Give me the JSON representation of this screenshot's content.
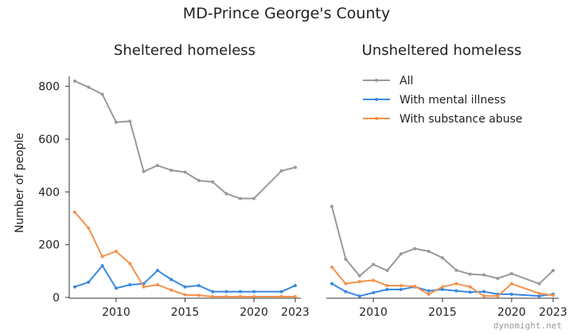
{
  "chart_data": {
    "type": "line",
    "title": "MD-Prince George's County",
    "ylabel": "Number of people",
    "ylim": [
      0,
      820
    ],
    "yticks": [
      0,
      200,
      400,
      600,
      800
    ],
    "xlim": [
      2007,
      2023
    ],
    "xticks": [
      2010,
      2015,
      2020,
      2023
    ],
    "grid": false,
    "legend": {
      "placement": "top-right of right panel"
    },
    "watermark": "dynomight.net",
    "series_styles": [
      {
        "name": "All",
        "color": "#999999"
      },
      {
        "name": "With mental illness",
        "color": "#3a88e0"
      },
      {
        "name": "With substance abuse",
        "color": "#f5924a"
      }
    ],
    "panels": [
      {
        "title": "Sheltered homeless",
        "series": [
          {
            "name": "All",
            "x": [
              2007,
              2008,
              2009,
              2010,
              2011,
              2012,
              2013,
              2014,
              2015,
              2016,
              2017,
              2018,
              2019,
              2020,
              2022,
              2023
            ],
            "values": [
              820,
              797,
              770,
              664,
              668,
              477,
              500,
              482,
              475,
              443,
              438,
              393,
              375,
              375,
              480,
              493
            ]
          },
          {
            "name": "With mental illness",
            "x": [
              2007,
              2008,
              2009,
              2010,
              2011,
              2012,
              2013,
              2014,
              2015,
              2016,
              2017,
              2018,
              2019,
              2020,
              2022,
              2023
            ],
            "values": [
              40,
              58,
              120,
              35,
              48,
              52,
              102,
              68,
              40,
              45,
              22,
              22,
              22,
              22,
              22,
              45
            ]
          },
          {
            "name": "With substance abuse",
            "x": [
              2007,
              2008,
              2009,
              2010,
              2011,
              2012,
              2013,
              2014,
              2015,
              2016,
              2017,
              2018,
              2019,
              2020,
              2022,
              2023
            ],
            "values": [
              323,
              263,
              155,
              175,
              128,
              40,
              48,
              28,
              10,
              8,
              3,
              3,
              3,
              3,
              3,
              3
            ]
          }
        ]
      },
      {
        "title": "Unsheltered homeless",
        "series": [
          {
            "name": "All",
            "x": [
              2007,
              2008,
              2009,
              2010,
              2011,
              2012,
              2013,
              2014,
              2015,
              2016,
              2017,
              2018,
              2019,
              2020,
              2022,
              2023
            ],
            "values": [
              345,
              145,
              82,
              125,
              102,
              165,
              185,
              175,
              150,
              103,
              88,
              85,
              72,
              90,
              52,
              102
            ]
          },
          {
            "name": "With mental illness",
            "x": [
              2007,
              2008,
              2009,
              2010,
              2011,
              2012,
              2013,
              2014,
              2015,
              2016,
              2017,
              2018,
              2019,
              2020,
              2022,
              2023
            ],
            "values": [
              52,
              22,
              5,
              18,
              30,
              30,
              40,
              25,
              30,
              25,
              20,
              22,
              12,
              12,
              5,
              12
            ]
          },
          {
            "name": "With substance abuse",
            "x": [
              2007,
              2008,
              2009,
              2010,
              2011,
              2012,
              2013,
              2014,
              2015,
              2016,
              2017,
              2018,
              2019,
              2020,
              2022,
              2023
            ],
            "values": [
              115,
              52,
              60,
              65,
              45,
              45,
              42,
              12,
              40,
              52,
              40,
              5,
              5,
              52,
              15,
              8
            ]
          }
        ]
      }
    ]
  }
}
